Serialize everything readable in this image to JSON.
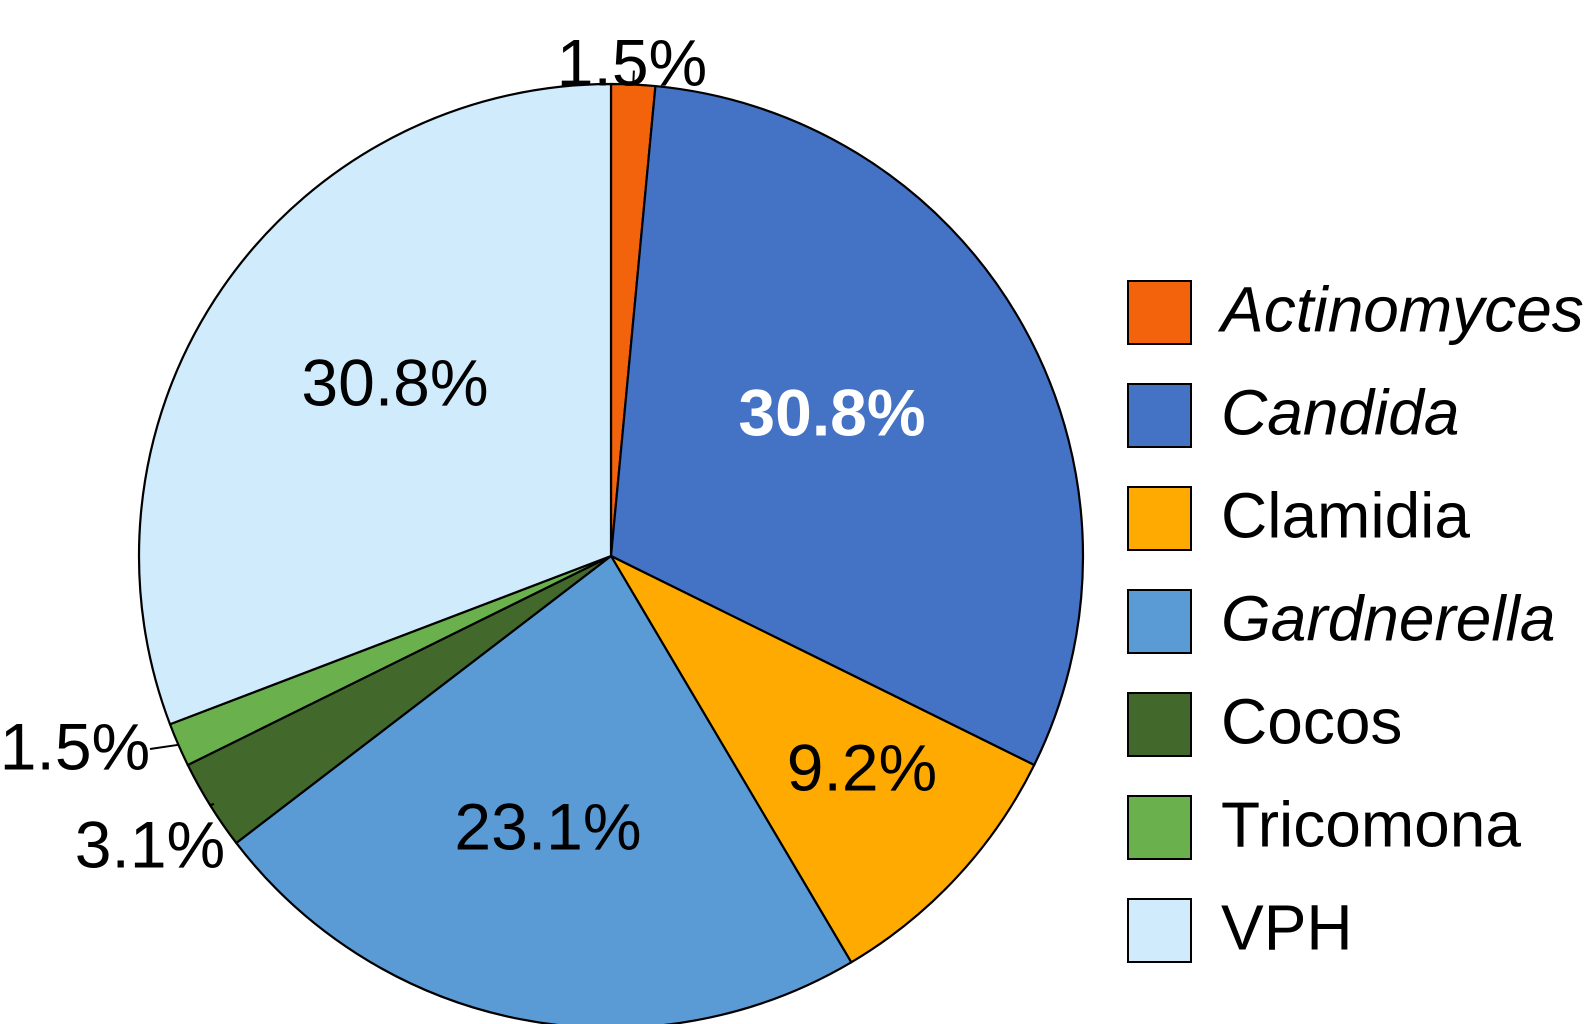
{
  "chart_data": {
    "type": "pie",
    "slices": [
      {
        "name": "Actinomyces",
        "value": 1.5,
        "label": "1.5%",
        "color": "#f2630c",
        "italic": true
      },
      {
        "name": "Candida",
        "value": 30.8,
        "label": "30.8%",
        "color": "#4472c4",
        "italic": true
      },
      {
        "name": "Clamidia",
        "value": 9.2,
        "label": "9.2%",
        "color": "#ffaa00",
        "italic": false
      },
      {
        "name": "Gardnerella",
        "value": 23.1,
        "label": "23.1%",
        "color": "#5b9bd5",
        "italic": true
      },
      {
        "name": "Cocos",
        "value": 3.1,
        "label": "3.1%",
        "color": "#43682b",
        "italic": false
      },
      {
        "name": "Tricomona",
        "value": 1.5,
        "label": "1.5%",
        "color": "#6ab04c",
        "italic": false
      },
      {
        "name": "VPH",
        "value": 30.8,
        "label": "30.8%",
        "color": "#d0ebfb",
        "italic": false
      }
    ],
    "legend_position": "right",
    "start_angle": "top, clockwise"
  }
}
